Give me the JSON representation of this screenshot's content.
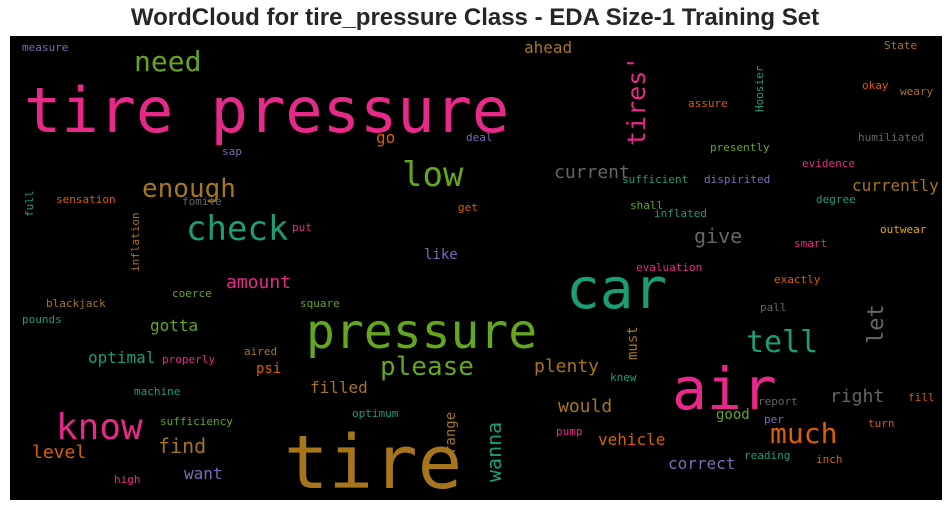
{
  "chart_data": {
    "type": "wordcloud",
    "title": "WordCloud for tire_pressure Class - EDA Size-1 Training Set",
    "words": [
      {
        "text": "tire pressure",
        "color": "#e7298a"
      },
      {
        "text": "tire",
        "color": "#a6761d"
      },
      {
        "text": "car",
        "color": "#1b9e77"
      },
      {
        "text": "air",
        "color": "#e7298a"
      },
      {
        "text": "pressure",
        "color": "#66a61e"
      },
      {
        "text": "check",
        "color": "#1b9e77"
      },
      {
        "text": "know",
        "color": "#e7298a"
      },
      {
        "text": "low",
        "color": "#66a61e"
      },
      {
        "text": "much",
        "color": "#d95f02"
      },
      {
        "text": "tell",
        "color": "#1b9e77"
      },
      {
        "text": "need",
        "color": "#66a61e"
      },
      {
        "text": "enough",
        "color": "#a6761d"
      },
      {
        "text": "please",
        "color": "#66a61e"
      },
      {
        "text": "tires'",
        "color": "#e7298a"
      },
      {
        "text": "let",
        "color": "#666666"
      },
      {
        "text": "give",
        "color": "#666666"
      },
      {
        "text": "current",
        "color": "#666666"
      },
      {
        "text": "wanna",
        "color": "#1b9e77"
      },
      {
        "text": "amount",
        "color": "#e7298a"
      },
      {
        "text": "find",
        "color": "#a6761d"
      },
      {
        "text": "level",
        "color": "#d95f02"
      },
      {
        "text": "would",
        "color": "#a6761d"
      },
      {
        "text": "plenty",
        "color": "#a6761d"
      },
      {
        "text": "right",
        "color": "#666666"
      },
      {
        "text": "vehicle",
        "color": "#d95f02"
      },
      {
        "text": "gotta",
        "color": "#66a61e"
      },
      {
        "text": "optimal",
        "color": "#1b9e77"
      },
      {
        "text": "filled",
        "color": "#a6761d"
      },
      {
        "text": "currently",
        "color": "#a6761d"
      },
      {
        "text": "correct",
        "color": "#7570b3"
      },
      {
        "text": "want",
        "color": "#7570b3"
      },
      {
        "text": "go",
        "color": "#d95f02"
      },
      {
        "text": "ahead",
        "color": "#a6761d"
      },
      {
        "text": "like",
        "color": "#7570b3"
      },
      {
        "text": "psi",
        "color": "#d95f02"
      },
      {
        "text": "good",
        "color": "#66a61e"
      },
      {
        "text": "must",
        "color": "#a6761d"
      },
      {
        "text": "range",
        "color": "#a6761d"
      },
      {
        "text": "measure",
        "color": "#7570b3"
      },
      {
        "text": "State",
        "color": "#a6761d"
      },
      {
        "text": "Hoosier",
        "color": "#1b9e77"
      },
      {
        "text": "assure",
        "color": "#d95f02"
      },
      {
        "text": "okay",
        "color": "#d95f02"
      },
      {
        "text": "weary",
        "color": "#a6761d"
      },
      {
        "text": "humiliated",
        "color": "#666666"
      },
      {
        "text": "deal",
        "color": "#7570b3"
      },
      {
        "text": "presently",
        "color": "#66a61e"
      },
      {
        "text": "sap",
        "color": "#7570b3"
      },
      {
        "text": "evidence",
        "color": "#e7298a"
      },
      {
        "text": "sufficient",
        "color": "#1b9e77"
      },
      {
        "text": "dispirited",
        "color": "#7570b3"
      },
      {
        "text": "full",
        "color": "#1b9e77"
      },
      {
        "text": "sensation",
        "color": "#d95f02"
      },
      {
        "text": "fomite",
        "color": "#666666"
      },
      {
        "text": "get",
        "color": "#d95f02"
      },
      {
        "text": "shall",
        "color": "#66a61e"
      },
      {
        "text": "inflated",
        "color": "#1b9e77"
      },
      {
        "text": "degree",
        "color": "#1b9e77"
      },
      {
        "text": "inflation",
        "color": "#a6761d"
      },
      {
        "text": "put",
        "color": "#e7298a"
      },
      {
        "text": "smart",
        "color": "#e7298a"
      },
      {
        "text": "outwear",
        "color": "#e6ab02"
      },
      {
        "text": "evaluation",
        "color": "#e7298a"
      },
      {
        "text": "exactly",
        "color": "#d95f02"
      },
      {
        "text": "blackjack",
        "color": "#a6761d"
      },
      {
        "text": "coerce",
        "color": "#66a61e"
      },
      {
        "text": "square",
        "color": "#66a61e"
      },
      {
        "text": "pall",
        "color": "#666666"
      },
      {
        "text": "pounds",
        "color": "#1b9e77"
      },
      {
        "text": "properly",
        "color": "#e7298a"
      },
      {
        "text": "aired",
        "color": "#a6761d"
      },
      {
        "text": "machine",
        "color": "#1b9e77"
      },
      {
        "text": "knew",
        "color": "#1b9e77"
      },
      {
        "text": "report",
        "color": "#666666"
      },
      {
        "text": "fill",
        "color": "#d95f02"
      },
      {
        "text": "optimum",
        "color": "#1b9e77"
      },
      {
        "text": "sufficiency",
        "color": "#66a61e"
      },
      {
        "text": "per",
        "color": "#7570b3"
      },
      {
        "text": "turn",
        "color": "#d95f02"
      },
      {
        "text": "pump",
        "color": "#e7298a"
      },
      {
        "text": "reading",
        "color": "#1b9e77"
      },
      {
        "text": "inch",
        "color": "#d95f02"
      },
      {
        "text": "high",
        "color": "#e7298a"
      }
    ]
  }
}
